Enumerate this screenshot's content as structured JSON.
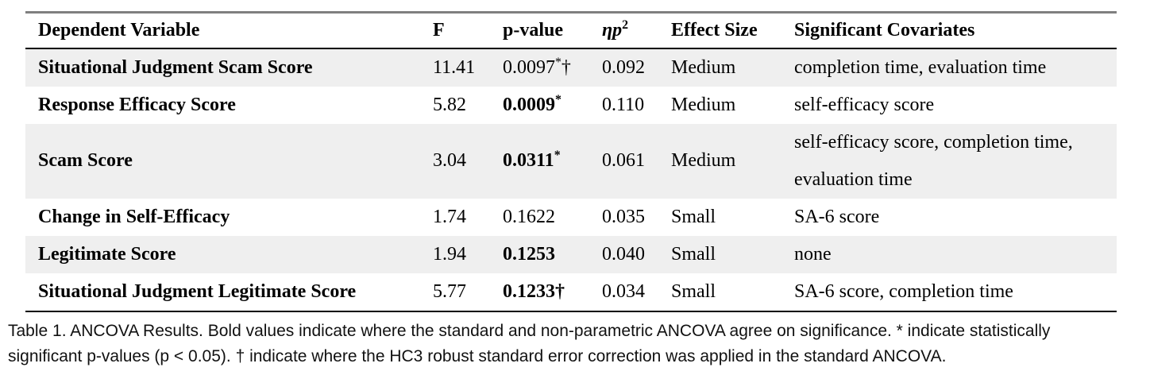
{
  "header": {
    "dv": "Dependent Variable",
    "f": "F",
    "p": "p-value",
    "eta_base": "ηp",
    "eta_sup": "2",
    "effect": "Effect Size",
    "cov": "Significant Covariates"
  },
  "rows": [
    {
      "dv": "Situational Judgment Scam Score",
      "f": "11.41",
      "p": "0.0097",
      "star": "*",
      "dagger": "†",
      "p_style": "",
      "eta": "0.092",
      "effect": "Medium",
      "cov": "completion time, evaluation time"
    },
    {
      "dv": "Response Efficacy Score",
      "f": "5.82",
      "p": "0.0009",
      "star": "*",
      "dagger": "",
      "p_style": "bold",
      "eta": "0.110",
      "effect": "Medium",
      "cov": "self-efficacy score"
    },
    {
      "dv": "Scam Score",
      "f": "3.04",
      "p": "0.0311",
      "star": "*",
      "dagger": "",
      "p_style": "bold",
      "eta": "0.061",
      "effect": "Medium",
      "cov": "self-efficacy score, completion time, evaluation time"
    },
    {
      "dv": "Change in Self-Efficacy",
      "f": "1.74",
      "p": "0.1622",
      "star": "",
      "dagger": "",
      "p_style": "",
      "eta": "0.035",
      "effect": "Small",
      "cov": "SA-6 score"
    },
    {
      "dv": "Legitimate Score",
      "f": "1.94",
      "p": "0.1253",
      "star": "",
      "dagger": "",
      "p_style": "bold",
      "eta": "0.040",
      "effect": "Small",
      "cov": "none"
    },
    {
      "dv": "Situational Judgment Legitimate Score",
      "f": "5.77",
      "p": "0.1233",
      "star": "",
      "dagger": "†",
      "p_style": "bold",
      "eta": "0.034",
      "effect": "Small",
      "cov": "SA-6 score, completion time"
    }
  ],
  "caption": {
    "line1": "Table 1.  ANCOVA Results. Bold values indicate where the standard and non-parametric ANCOVA agree on significance. * indicate statistically",
    "line2": "significant p-values (p < 0.05). † indicate where the HC3 robust standard error correction was applied in the standard ANCOVA."
  },
  "colors": {
    "row_stripe": "#efefef",
    "top_rule": "#7f7f7f",
    "black_rule": "#000000",
    "text": "#000000",
    "background": "#ffffff"
  }
}
